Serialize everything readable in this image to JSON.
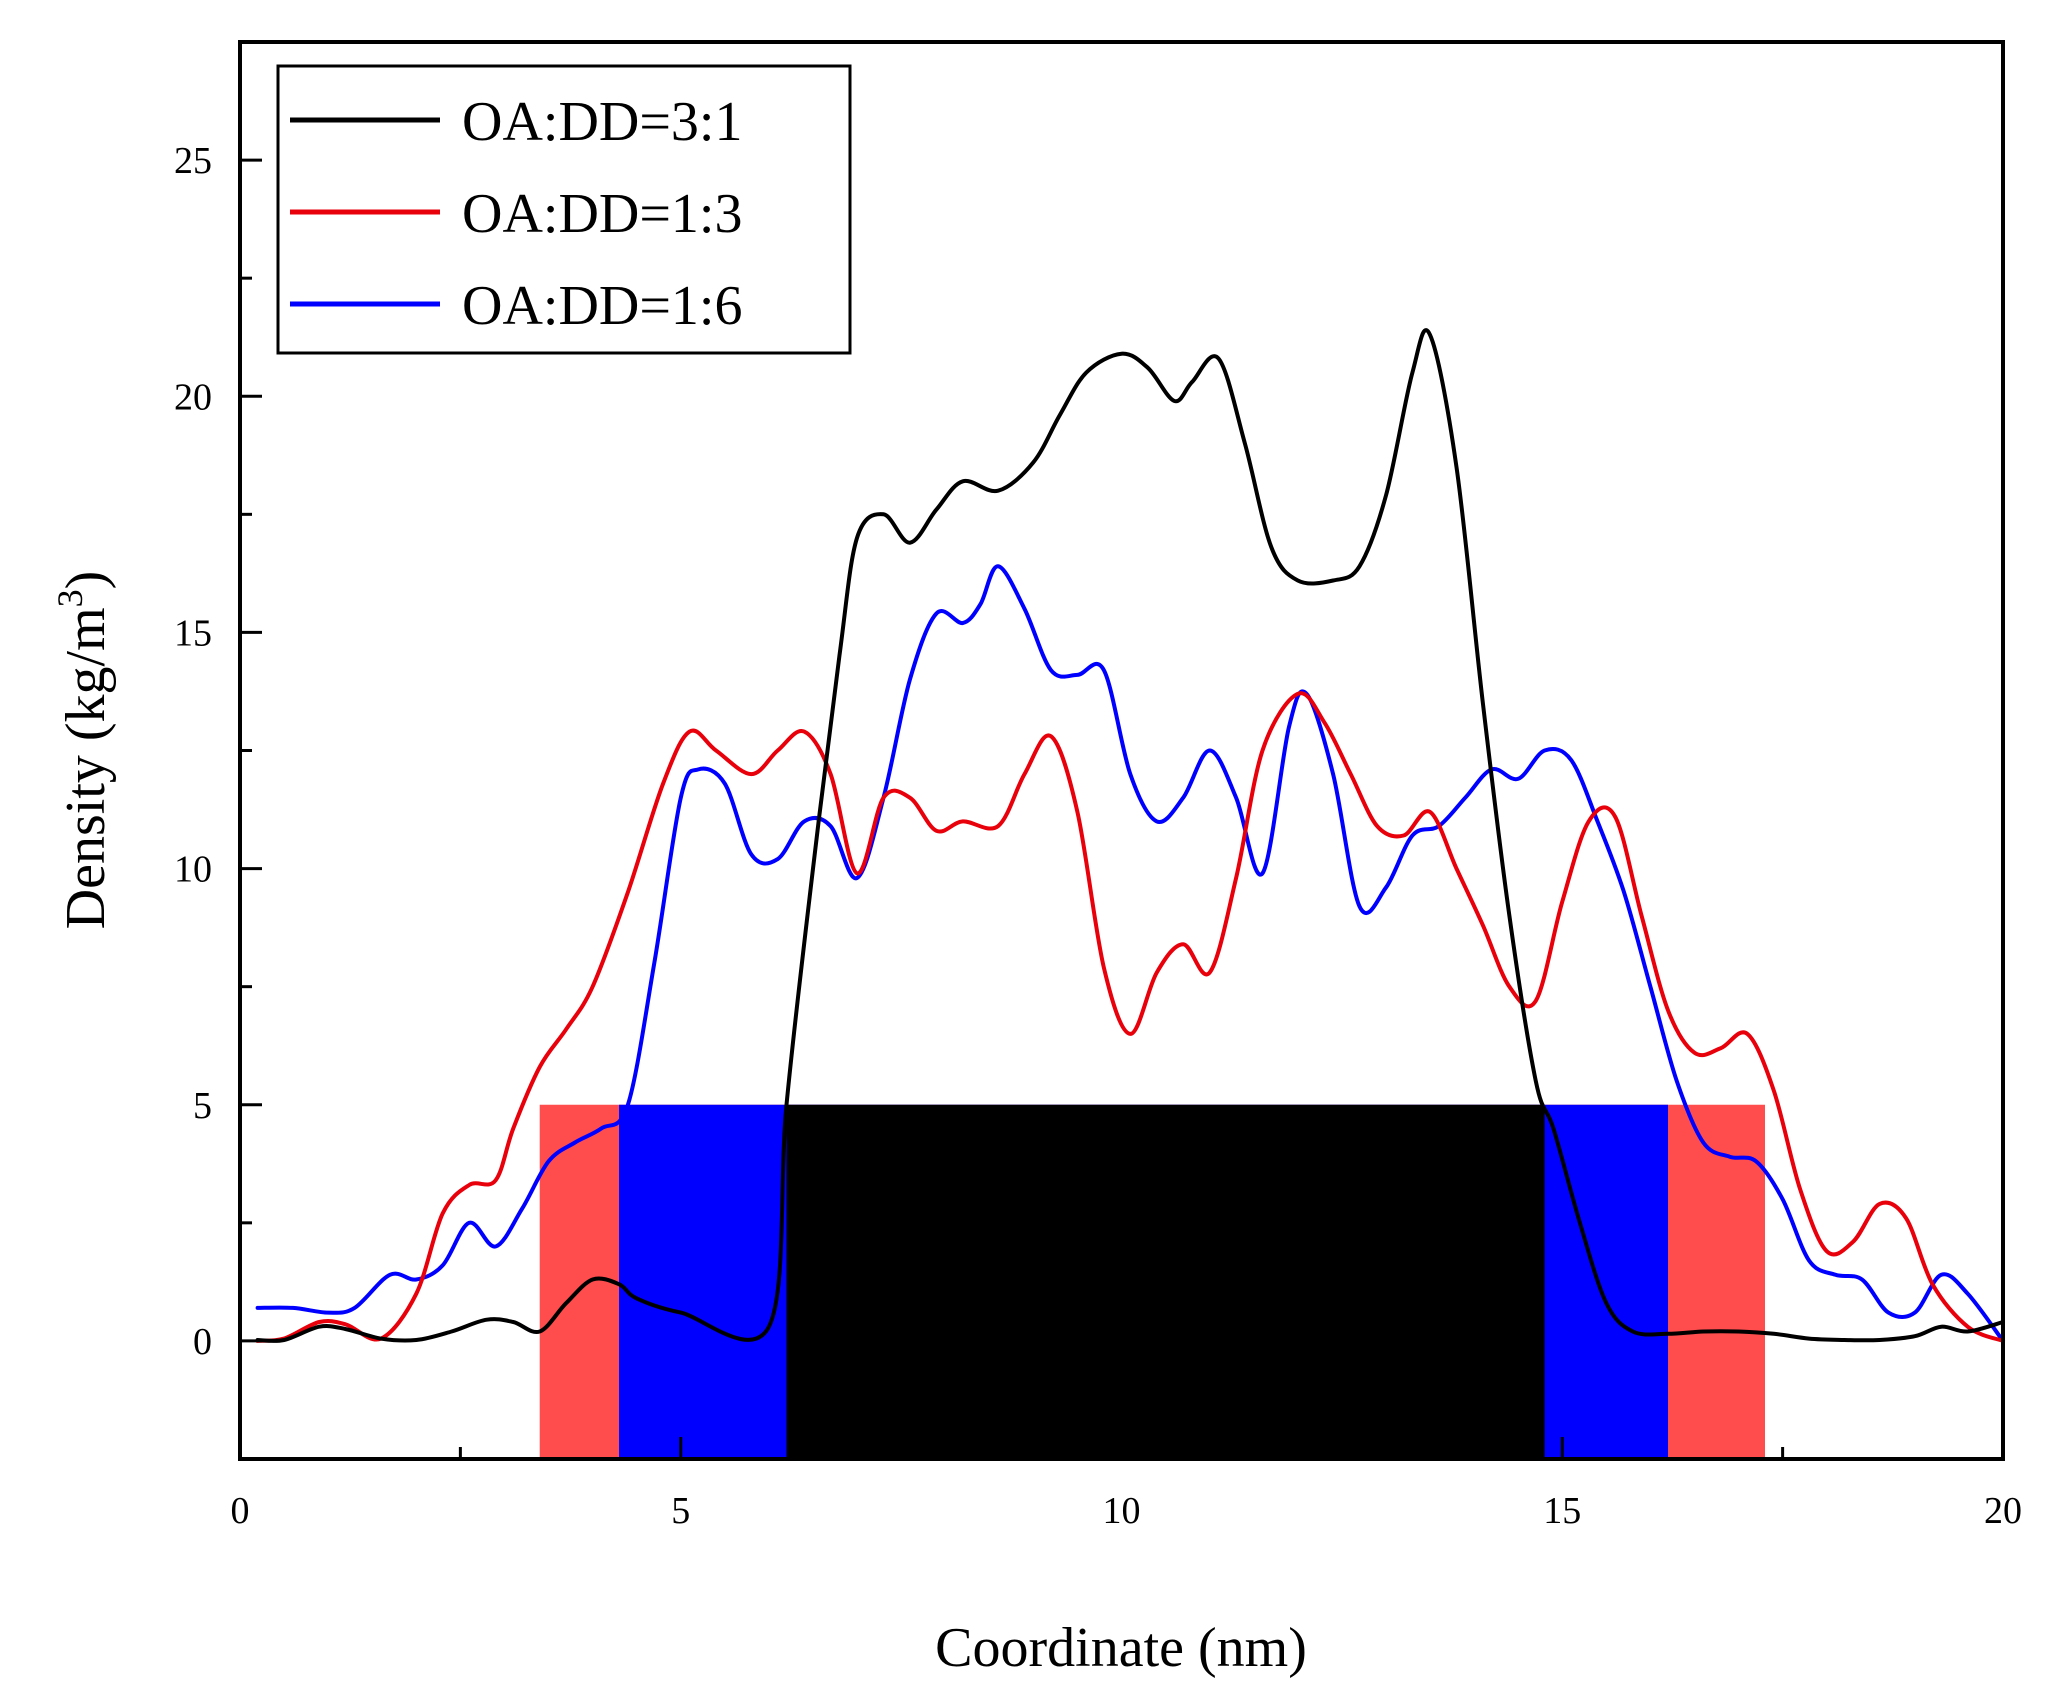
{
  "chart_data": {
    "type": "line",
    "title": "",
    "xlabel": "Coordinate (nm)",
    "ylabel": "Density (kg/m",
    "ylabel_sup": "3",
    "ylabel_close": ")",
    "xlim": [
      0,
      20
    ],
    "ylim": [
      -2.5,
      27.5
    ],
    "xticks": [
      0,
      5,
      10,
      15,
      20
    ],
    "xtick_labels": [
      "0",
      "5",
      "10",
      "15",
      "20"
    ],
    "yticks": [
      0,
      5,
      10,
      15,
      20,
      25
    ],
    "ytick_labels": [
      "0",
      "5",
      "10",
      "15",
      "20",
      "25"
    ],
    "grid": false,
    "legend_position": "top-left",
    "series": [
      {
        "name": "OA:DD=3:1",
        "color": "#000000",
        "x": [
          0.2,
          0.5,
          0.9,
          1.2,
          1.6,
          2.0,
          2.4,
          2.8,
          3.1,
          3.4,
          3.7,
          4.0,
          4.3,
          4.5,
          5.0,
          6.0,
          6.2,
          6.5,
          6.8,
          7.0,
          7.3,
          7.6,
          7.9,
          8.2,
          8.6,
          9.0,
          9.3,
          9.6,
          10.0,
          10.3,
          10.6,
          10.8,
          11.1,
          11.4,
          11.7,
          12.0,
          12.4,
          12.7,
          13.0,
          13.3,
          13.5,
          13.8,
          14.1,
          14.4,
          14.7,
          14.9,
          15.2,
          15.5,
          15.8,
          16.2,
          16.6,
          17.0,
          17.4,
          17.8,
          18.2,
          18.6,
          19.0,
          19.3,
          19.6,
          20.0
        ],
        "values": [
          0.02,
          0.02,
          0.3,
          0.25,
          0.05,
          0.02,
          0.2,
          0.45,
          0.4,
          0.2,
          0.8,
          1.3,
          1.2,
          0.9,
          0.6,
          0.3,
          5.0,
          10.0,
          14.5,
          17.0,
          17.5,
          16.9,
          17.6,
          18.2,
          18.0,
          18.6,
          19.6,
          20.5,
          20.9,
          20.6,
          19.9,
          20.3,
          20.8,
          19.0,
          16.8,
          16.1,
          16.1,
          16.4,
          17.9,
          20.5,
          21.3,
          18.5,
          13.5,
          9.0,
          5.5,
          4.5,
          2.5,
          0.8,
          0.2,
          0.15,
          0.2,
          0.2,
          0.15,
          0.05,
          0.02,
          0.02,
          0.1,
          0.3,
          0.2,
          0.4
        ]
      },
      {
        "name": "OA:DD=1:3",
        "color": "#e8000b",
        "x": [
          0.2,
          0.5,
          0.9,
          1.2,
          1.6,
          2.0,
          2.3,
          2.6,
          2.9,
          3.1,
          3.4,
          3.7,
          4.0,
          4.4,
          4.8,
          5.1,
          5.4,
          5.8,
          6.1,
          6.4,
          6.7,
          7.0,
          7.3,
          7.6,
          7.9,
          8.2,
          8.6,
          8.9,
          9.2,
          9.5,
          9.8,
          10.1,
          10.4,
          10.7,
          11.0,
          11.3,
          11.6,
          12.0,
          12.3,
          12.6,
          12.9,
          13.2,
          13.5,
          13.8,
          14.1,
          14.4,
          14.7,
          15.0,
          15.3,
          15.6,
          15.9,
          16.2,
          16.5,
          16.8,
          17.1,
          17.4,
          17.7,
          18.0,
          18.3,
          18.6,
          18.9,
          19.2,
          19.6,
          20.0
        ],
        "values": [
          0.0,
          0.05,
          0.4,
          0.35,
          0.05,
          1.0,
          2.7,
          3.3,
          3.4,
          4.5,
          5.8,
          6.6,
          7.5,
          9.5,
          11.8,
          12.9,
          12.5,
          12.0,
          12.5,
          12.9,
          12.0,
          9.9,
          11.5,
          11.5,
          10.8,
          11.0,
          10.9,
          12.0,
          12.8,
          11.2,
          7.9,
          6.5,
          7.8,
          8.4,
          7.8,
          9.8,
          12.5,
          13.7,
          13.1,
          12.0,
          10.9,
          10.7,
          11.2,
          10.0,
          8.8,
          7.5,
          7.2,
          9.3,
          11.0,
          11.1,
          9.0,
          7.0,
          6.1,
          6.2,
          6.5,
          5.3,
          3.2,
          1.9,
          2.1,
          2.9,
          2.6,
          1.2,
          0.3,
          0.0
        ]
      },
      {
        "name": "OA:DD=1:6",
        "color": "#0000ff",
        "x": [
          0.2,
          0.6,
          1.0,
          1.3,
          1.7,
          2.0,
          2.3,
          2.6,
          2.9,
          3.2,
          3.5,
          3.8,
          4.1,
          4.4,
          4.7,
          5.0,
          5.2,
          5.5,
          5.8,
          6.1,
          6.4,
          6.7,
          7.0,
          7.3,
          7.6,
          7.9,
          8.2,
          8.4,
          8.6,
          8.9,
          9.2,
          9.5,
          9.8,
          10.1,
          10.4,
          10.7,
          11.0,
          11.3,
          11.6,
          11.9,
          12.1,
          12.4,
          12.7,
          13.0,
          13.3,
          13.6,
          13.9,
          14.2,
          14.5,
          14.8,
          15.1,
          15.4,
          15.7,
          16.0,
          16.3,
          16.6,
          16.9,
          17.2,
          17.5,
          17.8,
          18.1,
          18.4,
          18.7,
          19.0,
          19.3,
          19.6,
          20.0
        ],
        "values": [
          0.7,
          0.7,
          0.6,
          0.7,
          1.4,
          1.3,
          1.6,
          2.5,
          2.0,
          2.8,
          3.8,
          4.2,
          4.5,
          5.0,
          8.0,
          11.5,
          12.1,
          11.8,
          10.3,
          10.2,
          11.0,
          10.9,
          9.8,
          11.5,
          14.0,
          15.4,
          15.2,
          15.6,
          16.4,
          15.5,
          14.2,
          14.1,
          14.2,
          12.0,
          11.0,
          11.5,
          12.5,
          11.5,
          9.9,
          13.0,
          13.7,
          12.0,
          9.2,
          9.6,
          10.7,
          10.9,
          11.5,
          12.1,
          11.9,
          12.5,
          12.3,
          11.0,
          9.5,
          7.5,
          5.5,
          4.2,
          3.9,
          3.8,
          3.0,
          1.7,
          1.4,
          1.3,
          0.6,
          0.6,
          1.4,
          1.0,
          0.0
        ]
      }
    ],
    "bands": [
      {
        "name": "OA:DD=1:3 region",
        "color": "#ff4d4d",
        "x_start": 3.4,
        "x_end": 17.3,
        "y_start": -2.5,
        "y_end": 5
      },
      {
        "name": "OA:DD=1:6 region",
        "color": "#0000ff",
        "x_start": 4.3,
        "x_end": 16.2,
        "y_start": -2.5,
        "y_end": 5
      },
      {
        "name": "OA:DD=3:1 region",
        "color": "#000000",
        "x_start": 6.2,
        "x_end": 14.8,
        "y_start": -2.5,
        "y_end": 5
      }
    ]
  }
}
